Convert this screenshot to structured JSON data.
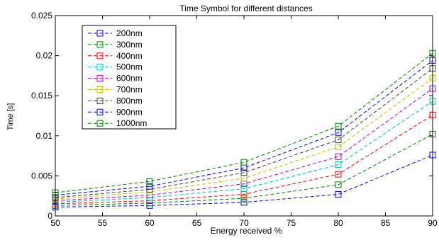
{
  "chart_data": {
    "type": "line",
    "title": "Time Symbol for different distances",
    "xlabel": "Energy received %",
    "ylabel": "Time [s]",
    "xlim": [
      50,
      90
    ],
    "ylim": [
      0,
      0.025
    ],
    "x": [
      50,
      60,
      70,
      80,
      90
    ],
    "x_ticks": [
      "50",
      "55",
      "60",
      "65",
      "70",
      "75",
      "80",
      "85",
      "90"
    ],
    "y_ticks": [
      "0",
      "0.005",
      "0.01",
      "0.015",
      "0.02",
      "0.025"
    ],
    "grid": false,
    "legend_position": "top-left",
    "line_style": "dashed",
    "marker": "square",
    "series": [
      {
        "name": "200nm",
        "color": "#0000ff",
        "values": [
          0.0011,
          0.0013,
          0.0017,
          0.0027,
          0.0076
        ]
      },
      {
        "name": "300nm",
        "color": "#008000",
        "values": [
          0.0013,
          0.0016,
          0.0022,
          0.0039,
          0.0102
        ]
      },
      {
        "name": "400nm",
        "color": "#ff0000",
        "values": [
          0.0015,
          0.0019,
          0.0027,
          0.0052,
          0.0126
        ]
      },
      {
        "name": "500nm",
        "color": "#00bfbf",
        "values": [
          0.0017,
          0.0023,
          0.0034,
          0.0064,
          0.0143
        ]
      },
      {
        "name": "600nm",
        "color": "#bf00bf",
        "values": [
          0.0019,
          0.0026,
          0.004,
          0.0074,
          0.0159
        ]
      },
      {
        "name": "700nm",
        "color": "#bfbf00",
        "values": [
          0.0021,
          0.003,
          0.0047,
          0.0086,
          0.0172
        ]
      },
      {
        "name": "800nm",
        "color": "#404040",
        "values": [
          0.0023,
          0.0033,
          0.0054,
          0.0095,
          0.0184
        ]
      },
      {
        "name": "900nm",
        "color": "#0000ff",
        "values": [
          0.0026,
          0.0037,
          0.006,
          0.0104,
          0.0194
        ]
      },
      {
        "name": "1000nm",
        "color": "#008000",
        "values": [
          0.0029,
          0.0043,
          0.0067,
          0.0112,
          0.0203
        ]
      }
    ]
  }
}
